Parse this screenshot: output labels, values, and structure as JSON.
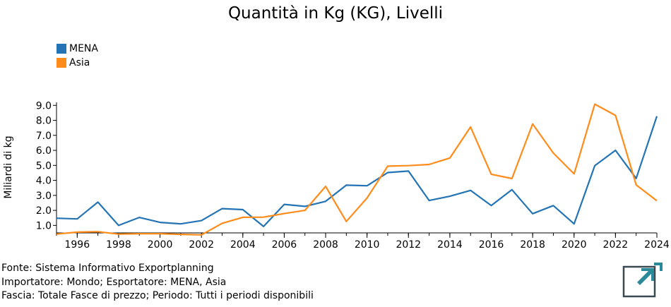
{
  "colors": {
    "MENA": "#2474b5",
    "Asia": "#ff8c1a",
    "logo": "#2b8a99"
  },
  "icons": {
    "logo": "exportplanning-logo-icon"
  },
  "footer": {
    "line1": "Fonte: Sistema Informativo Exportplanning",
    "line2": "Importatore: Mondo; Esportatore: MENA, Asia",
    "line3": "Fascia: Totale Fasce di prezzo; Periodo: Tutti i periodi disponibili"
  },
  "chart_data": {
    "type": "line",
    "title": "Quantità in Kg (KG), Livelli",
    "xlabel": "",
    "ylabel": "Miliardi di kg",
    "x": [
      1995,
      1996,
      1997,
      1998,
      1999,
      2000,
      2001,
      2002,
      2003,
      2004,
      2005,
      2006,
      2007,
      2008,
      2009,
      2010,
      2011,
      2012,
      2013,
      2014,
      2015,
      2016,
      2017,
      2018,
      2019,
      2020,
      2021,
      2022,
      2023,
      2024
    ],
    "xlim": [
      1995,
      2024
    ],
    "ylim": [
      0.5,
      9.2
    ],
    "yticks": [
      "1.0",
      "2.0",
      "3.0",
      "4.0",
      "5.0",
      "6.0",
      "7.0",
      "8.0",
      "9.0"
    ],
    "xticks": [
      "1996",
      "1998",
      "2000",
      "2002",
      "2004",
      "2006",
      "2008",
      "2010",
      "2012",
      "2014",
      "2016",
      "2018",
      "2020",
      "2022",
      "2024"
    ],
    "legend_position": "top-left",
    "grid": false,
    "series": [
      {
        "name": "MENA",
        "values": [
          1.48,
          1.43,
          2.55,
          1.0,
          1.53,
          1.2,
          1.1,
          1.32,
          2.12,
          2.05,
          0.93,
          2.4,
          2.27,
          2.6,
          3.68,
          3.64,
          4.52,
          4.62,
          2.66,
          2.94,
          3.33,
          2.32,
          3.38,
          1.78,
          2.32,
          1.1,
          4.98,
          6.0,
          4.13,
          8.28
        ]
      },
      {
        "name": "Asia",
        "values": [
          0.42,
          0.55,
          0.58,
          0.42,
          0.45,
          0.45,
          0.4,
          0.37,
          1.14,
          1.54,
          1.55,
          1.79,
          2.0,
          3.6,
          1.26,
          2.83,
          4.95,
          4.98,
          5.06,
          5.49,
          7.56,
          4.41,
          4.12,
          7.76,
          5.82,
          4.43,
          9.08,
          8.33,
          3.7,
          2.64
        ]
      }
    ]
  }
}
